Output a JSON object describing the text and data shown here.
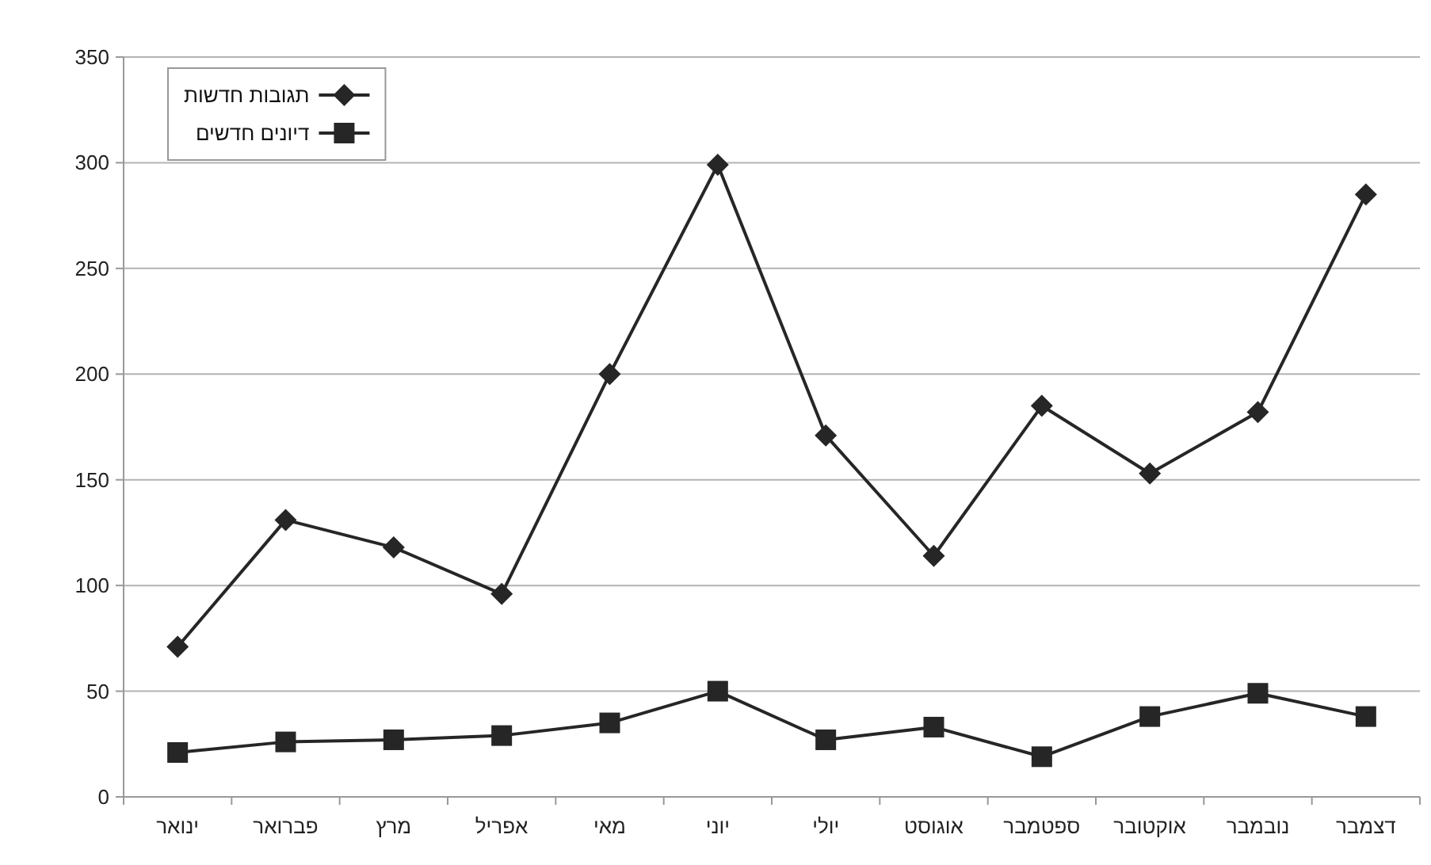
{
  "chart_data": {
    "type": "line",
    "categories": [
      "ינואר",
      "פברואר",
      "מרץ",
      "אפריל",
      "מאי",
      "יוני",
      "יולי",
      "אוגוסט",
      "ספטמבר",
      "אוקטובר",
      "נובמבר",
      "דצמבר"
    ],
    "series": [
      {
        "name": "תגובות חדשות",
        "color": "#262626",
        "marker": "diamond",
        "values": [
          71,
          131,
          118,
          96,
          200,
          299,
          171,
          114,
          185,
          153,
          182,
          285
        ]
      },
      {
        "name": "דיונים חדשים",
        "color": "#262626",
        "marker": "square",
        "values": [
          21,
          26,
          27,
          29,
          35,
          50,
          27,
          33,
          19,
          38,
          49,
          38
        ]
      }
    ],
    "ylim": [
      0,
      350
    ],
    "yticks": [
      0,
      50,
      100,
      150,
      200,
      250,
      300,
      350
    ],
    "grid": "y",
    "legend": "top left",
    "line_style": "solid"
  }
}
